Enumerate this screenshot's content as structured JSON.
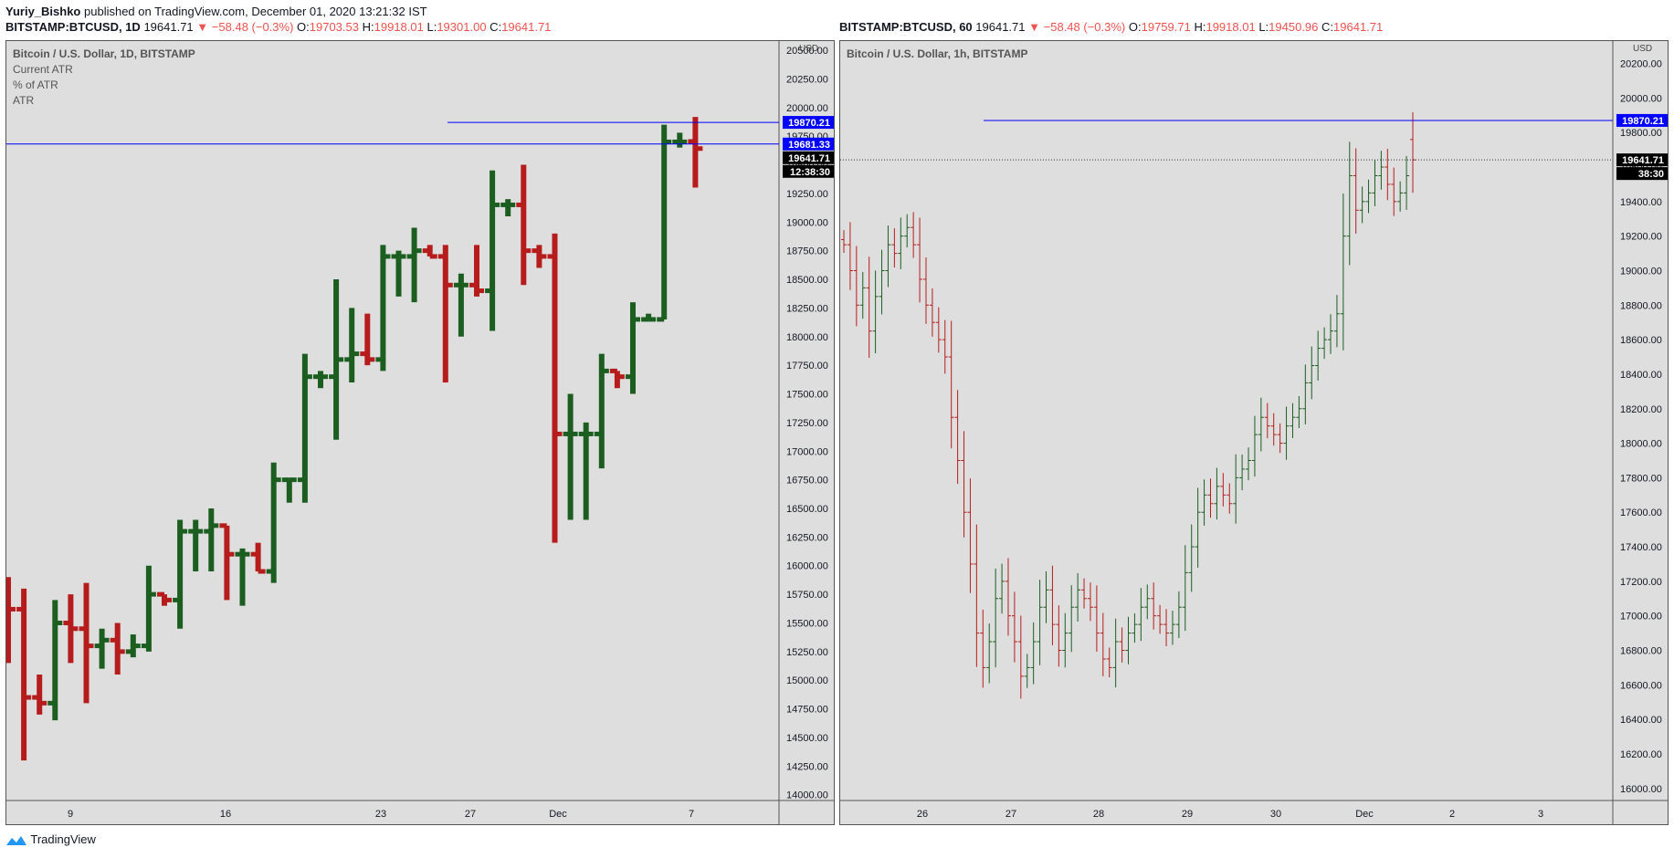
{
  "header": {
    "author": "Yuriy_Bishko",
    "published_text": "published on TradingView.com, December 01, 2020 13:21:32 IST"
  },
  "panels": [
    {
      "symbol": "BITSTAMP:BTCUSD, 1D",
      "price": "19641.71",
      "change": "−58.48 (−0.3%)",
      "open": "19703.53",
      "high": "19918.01",
      "low": "19301.00",
      "close": "19641.71",
      "legend": [
        "Bitcoin / U.S. Dollar, 1D, BITSTAMP",
        "Current ATR",
        "% of ATR",
        "ATR"
      ],
      "currency": "USD",
      "badges": [
        {
          "text": "19870.21",
          "color": "#0000ff"
        },
        {
          "text": "19681.33",
          "color": "#0000ff"
        },
        {
          "text": "19641.71",
          "color": "#000000"
        },
        {
          "text": "12:38:30",
          "color": "#000000"
        }
      ]
    },
    {
      "symbol": "BITSTAMP:BTCUSD, 60",
      "price": "19641.71",
      "change": "−58.48 (−0.3%)",
      "open": "19759.71",
      "high": "19918.01",
      "low": "19450.96",
      "close": "19641.71",
      "legend": [
        "Bitcoin / U.S. Dollar, 1h, BITSTAMP"
      ],
      "currency": "USD",
      "badges": [
        {
          "text": "19870.21",
          "color": "#0000ff"
        },
        {
          "text": "19641.71",
          "color": "#000000"
        },
        {
          "text": "38:30",
          "color": "#000000"
        }
      ]
    }
  ],
  "footer": {
    "brand": "TradingView"
  },
  "chart_data": [
    {
      "type": "ohlc",
      "title": "Bitcoin / U.S. Dollar, 1D, BITSTAMP",
      "ylim": [
        13950,
        20580
      ],
      "yticks": [
        14000,
        14250,
        14500,
        14750,
        15000,
        15250,
        15500,
        15750,
        16000,
        16250,
        16500,
        16750,
        17000,
        17250,
        17500,
        17750,
        18000,
        18250,
        18500,
        18750,
        19000,
        19250,
        19500,
        19750,
        20000,
        20250,
        20500
      ],
      "x_ticks": [
        "9",
        "16",
        "23",
        "27",
        "Dec",
        "7"
      ],
      "hlines": [
        19870.21,
        19681.33
      ],
      "up_color": "#1b5e20",
      "down_color": "#b71c1c",
      "bars": [
        {
          "o": 15650,
          "h": 15900,
          "l": 15150,
          "c": 15620
        },
        {
          "o": 15620,
          "h": 15800,
          "l": 14300,
          "c": 14850
        },
        {
          "o": 14850,
          "h": 15050,
          "l": 14700,
          "c": 14800
        },
        {
          "o": 14800,
          "h": 15700,
          "l": 14650,
          "c": 15500
        },
        {
          "o": 15500,
          "h": 15750,
          "l": 15150,
          "c": 15450
        },
        {
          "o": 15450,
          "h": 15850,
          "l": 14800,
          "c": 15300
        },
        {
          "o": 15300,
          "h": 15450,
          "l": 15100,
          "c": 15350
        },
        {
          "o": 15350,
          "h": 15500,
          "l": 15050,
          "c": 15250
        },
        {
          "o": 15250,
          "h": 15400,
          "l": 15200,
          "c": 15300
        },
        {
          "o": 15300,
          "h": 16000,
          "l": 15250,
          "c": 15750
        },
        {
          "o": 15750,
          "h": 15750,
          "l": 15650,
          "c": 15700
        },
        {
          "o": 15700,
          "h": 16400,
          "l": 15450,
          "c": 16300
        },
        {
          "o": 16300,
          "h": 16400,
          "l": 15950,
          "c": 16300
        },
        {
          "o": 16300,
          "h": 16500,
          "l": 15950,
          "c": 16350
        },
        {
          "o": 16350,
          "h": 16350,
          "l": 15700,
          "c": 16100
        },
        {
          "o": 16100,
          "h": 16150,
          "l": 15650,
          "c": 16100
        },
        {
          "o": 16100,
          "h": 16200,
          "l": 15950,
          "c": 15950
        },
        {
          "o": 15950,
          "h": 16900,
          "l": 15850,
          "c": 16750
        },
        {
          "o": 16750,
          "h": 16750,
          "l": 16550,
          "c": 16750
        },
        {
          "o": 16750,
          "h": 17850,
          "l": 16550,
          "c": 17650
        },
        {
          "o": 17650,
          "h": 17700,
          "l": 17550,
          "c": 17650
        },
        {
          "o": 17650,
          "h": 18500,
          "l": 17100,
          "c": 17800
        },
        {
          "o": 17800,
          "h": 18250,
          "l": 17600,
          "c": 17850
        },
        {
          "o": 17850,
          "h": 18200,
          "l": 17750,
          "c": 17800
        },
        {
          "o": 17800,
          "h": 18800,
          "l": 17700,
          "c": 18700
        },
        {
          "o": 18700,
          "h": 18750,
          "l": 18350,
          "c": 18700
        },
        {
          "o": 18700,
          "h": 18950,
          "l": 18300,
          "c": 18750
        },
        {
          "o": 18750,
          "h": 18800,
          "l": 18700,
          "c": 18700
        },
        {
          "o": 18700,
          "h": 18800,
          "l": 17600,
          "c": 18450
        },
        {
          "o": 18450,
          "h": 18550,
          "l": 18000,
          "c": 18450
        },
        {
          "o": 18450,
          "h": 18800,
          "l": 18350,
          "c": 18400
        },
        {
          "o": 18400,
          "h": 19450,
          "l": 18050,
          "c": 19150
        },
        {
          "o": 19150,
          "h": 19200,
          "l": 19050,
          "c": 19150
        },
        {
          "o": 19150,
          "h": 19500,
          "l": 18450,
          "c": 18750
        },
        {
          "o": 18750,
          "h": 18800,
          "l": 18600,
          "c": 18700
        },
        {
          "o": 18700,
          "h": 18900,
          "l": 16200,
          "c": 17150
        },
        {
          "o": 17150,
          "h": 17500,
          "l": 16400,
          "c": 17150
        },
        {
          "o": 17150,
          "h": 17250,
          "l": 16400,
          "c": 17150
        },
        {
          "o": 17150,
          "h": 17850,
          "l": 16850,
          "c": 17700
        },
        {
          "o": 17700,
          "h": 17700,
          "l": 17550,
          "c": 17650
        },
        {
          "o": 17650,
          "h": 18300,
          "l": 17500,
          "c": 18150
        },
        {
          "o": 18150,
          "h": 18200,
          "l": 18150,
          "c": 18150
        },
        {
          "o": 18150,
          "h": 19850,
          "l": 18150,
          "c": 19700
        },
        {
          "o": 19700,
          "h": 19780,
          "l": 19650,
          "c": 19700
        },
        {
          "o": 19703.53,
          "h": 19918.01,
          "l": 19301,
          "c": 19641.71
        }
      ]
    },
    {
      "type": "ohlc",
      "title": "Bitcoin / U.S. Dollar, 1h, BITSTAMP",
      "ylim": [
        15930,
        20330
      ],
      "yticks": [
        16000,
        16200,
        16400,
        16600,
        16800,
        17000,
        17200,
        17400,
        17600,
        17800,
        18000,
        18200,
        18400,
        18600,
        18800,
        19000,
        19200,
        19400,
        19600,
        19800,
        20000,
        20200
      ],
      "x_ticks": [
        "26",
        "27",
        "28",
        "29",
        "30",
        "Dec",
        "2",
        "3"
      ],
      "hlines": [
        19870.21
      ],
      "dotted_line": 19641.71,
      "up_color": "#1b5e20",
      "down_color": "#b71c1c",
      "closes": [
        19150,
        19000,
        18800,
        18900,
        18650,
        18850,
        19000,
        19150,
        19100,
        19200,
        19250,
        19150,
        18950,
        18800,
        18700,
        18600,
        18500,
        18150,
        17900,
        17600,
        17300,
        16900,
        16700,
        16850,
        17100,
        17200,
        17000,
        16850,
        16650,
        16700,
        16850,
        17050,
        17150,
        16950,
        16800,
        16900,
        17050,
        17150,
        17100,
        17050,
        16900,
        16750,
        16700,
        16850,
        16800,
        16900,
        16950,
        17050,
        17100,
        17000,
        16950,
        16900,
        16950,
        17050,
        17250,
        17400,
        17600,
        17700,
        17650,
        17750,
        17700,
        17650,
        17800,
        17850,
        17900,
        18050,
        18150,
        18100,
        18050,
        18000,
        18100,
        18150,
        18200,
        18350,
        18450,
        18550,
        18600,
        18650,
        18750,
        19200,
        19550,
        19350,
        19400,
        19450,
        19550,
        19600,
        19500,
        19400,
        19450,
        19550,
        19641.71
      ]
    }
  ]
}
